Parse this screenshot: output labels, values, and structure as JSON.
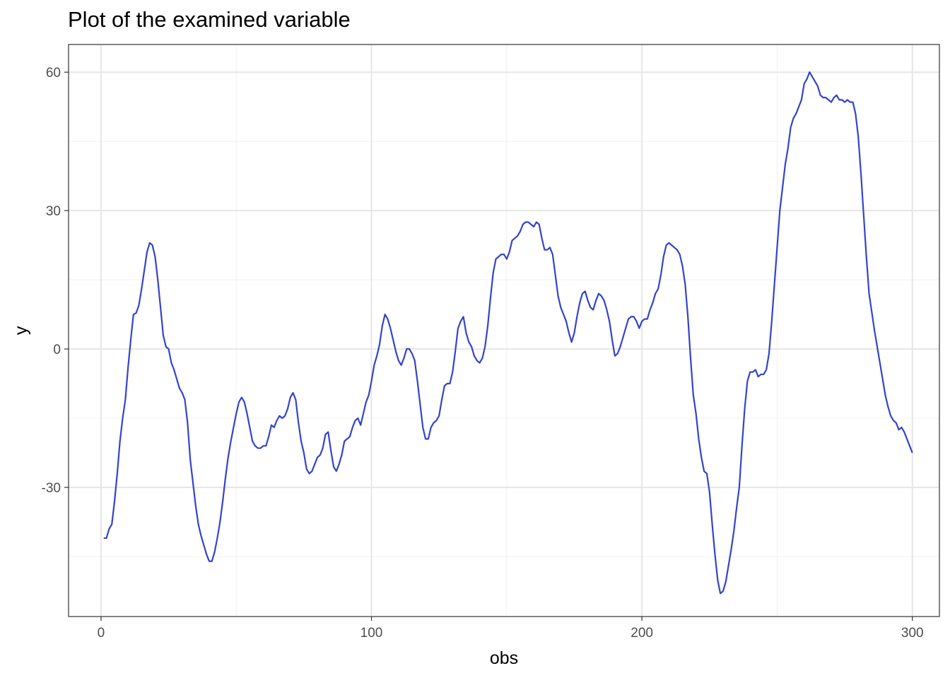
{
  "chart_data": {
    "type": "line",
    "title": "Plot of the examined variable",
    "xlabel": "obs",
    "ylabel": "y",
    "xlim": [
      -12,
      310
    ],
    "ylim": [
      -58,
      66
    ],
    "x_ticks": [
      0,
      100,
      200,
      300
    ],
    "y_ticks": [
      -30,
      0,
      30,
      60
    ],
    "grid": true,
    "line_color": "#3344cc",
    "series": [
      {
        "points": [
          [
            1,
            -41
          ],
          [
            2,
            -41
          ],
          [
            3,
            -39
          ],
          [
            4,
            -38
          ],
          [
            5,
            -33
          ],
          [
            6,
            -27
          ],
          [
            7,
            -20
          ],
          [
            8,
            -15
          ],
          [
            9,
            -11
          ],
          [
            10,
            -4
          ],
          [
            11,
            2
          ],
          [
            12,
            7.5
          ],
          [
            13,
            7.8
          ],
          [
            14,
            9.5
          ],
          [
            15,
            13
          ],
          [
            16,
            17
          ],
          [
            17,
            21
          ],
          [
            18,
            23
          ],
          [
            19,
            22.5
          ],
          [
            20,
            20
          ],
          [
            21,
            15
          ],
          [
            22,
            9
          ],
          [
            23,
            3
          ],
          [
            24,
            0.5
          ],
          [
            25,
            0
          ],
          [
            26,
            -3
          ],
          [
            27,
            -4.5
          ],
          [
            28,
            -6.5
          ],
          [
            29,
            -8.5
          ],
          [
            30,
            -9.5
          ],
          [
            31,
            -11
          ],
          [
            32,
            -16
          ],
          [
            33,
            -24
          ],
          [
            34,
            -29
          ],
          [
            35,
            -34
          ],
          [
            36,
            -38
          ],
          [
            37,
            -40.5
          ],
          [
            38,
            -42.5
          ],
          [
            39,
            -44.5
          ],
          [
            40,
            -46
          ],
          [
            41,
            -46
          ],
          [
            42,
            -44
          ],
          [
            43,
            -41
          ],
          [
            44,
            -37.5
          ],
          [
            45,
            -33
          ],
          [
            46,
            -28
          ],
          [
            47,
            -23.5
          ],
          [
            48,
            -20
          ],
          [
            49,
            -17
          ],
          [
            50,
            -14
          ],
          [
            51,
            -11.5
          ],
          [
            52,
            -10.5
          ],
          [
            53,
            -11.5
          ],
          [
            54,
            -14
          ],
          [
            55,
            -17
          ],
          [
            56,
            -20
          ],
          [
            57,
            -21
          ],
          [
            58,
            -21.5
          ],
          [
            59,
            -21.5
          ],
          [
            60,
            -21
          ],
          [
            61,
            -21
          ],
          [
            62,
            -19
          ],
          [
            63,
            -16.5
          ],
          [
            64,
            -17
          ],
          [
            65,
            -15.5
          ],
          [
            66,
            -14.5
          ],
          [
            67,
            -15
          ],
          [
            68,
            -14.5
          ],
          [
            69,
            -13
          ],
          [
            70,
            -10.5
          ],
          [
            71,
            -9.5
          ],
          [
            72,
            -11
          ],
          [
            73,
            -16
          ],
          [
            74,
            -20
          ],
          [
            75,
            -22.5
          ],
          [
            76,
            -26
          ],
          [
            77,
            -27
          ],
          [
            78,
            -26.5
          ],
          [
            79,
            -25
          ],
          [
            80,
            -23.5
          ],
          [
            81,
            -23
          ],
          [
            82,
            -21.5
          ],
          [
            83,
            -18.5
          ],
          [
            84,
            -18
          ],
          [
            85,
            -22
          ],
          [
            86,
            -25.5
          ],
          [
            87,
            -26.5
          ],
          [
            88,
            -25
          ],
          [
            89,
            -23
          ],
          [
            90,
            -20
          ],
          [
            91,
            -19.5
          ],
          [
            92,
            -19
          ],
          [
            93,
            -17
          ],
          [
            94,
            -15.5
          ],
          [
            95,
            -15
          ],
          [
            96,
            -16.5
          ],
          [
            97,
            -14
          ],
          [
            98,
            -11.5
          ],
          [
            99,
            -10
          ],
          [
            100,
            -7
          ],
          [
            101,
            -3.5
          ],
          [
            102,
            -1.5
          ],
          [
            103,
            1
          ],
          [
            104,
            5
          ],
          [
            105,
            7.5
          ],
          [
            106,
            6.5
          ],
          [
            107,
            4.5
          ],
          [
            108,
            2
          ],
          [
            109,
            -0.5
          ],
          [
            110,
            -2.5
          ],
          [
            111,
            -3.5
          ],
          [
            112,
            -2
          ],
          [
            113,
            0
          ],
          [
            114,
            0
          ],
          [
            115,
            -1
          ],
          [
            116,
            -2.5
          ],
          [
            117,
            -7
          ],
          [
            118,
            -12
          ],
          [
            119,
            -17
          ],
          [
            120,
            -19.5
          ],
          [
            121,
            -19.5
          ],
          [
            122,
            -17
          ],
          [
            123,
            -16
          ],
          [
            124,
            -15.5
          ],
          [
            125,
            -14.5
          ],
          [
            126,
            -11
          ],
          [
            127,
            -8
          ],
          [
            128,
            -7.5
          ],
          [
            129,
            -7.5
          ],
          [
            130,
            -5
          ],
          [
            131,
            -0.5
          ],
          [
            132,
            4.5
          ],
          [
            133,
            6
          ],
          [
            134,
            7
          ],
          [
            135,
            3.5
          ],
          [
            136,
            1.5
          ],
          [
            137,
            0.5
          ],
          [
            138,
            -1.5
          ],
          [
            139,
            -2.5
          ],
          [
            140,
            -3
          ],
          [
            141,
            -2
          ],
          [
            142,
            0.5
          ],
          [
            143,
            5
          ],
          [
            144,
            11
          ],
          [
            145,
            16.5
          ],
          [
            146,
            19.5
          ],
          [
            147,
            20
          ],
          [
            148,
            20.5
          ],
          [
            149,
            20.5
          ],
          [
            150,
            19.5
          ],
          [
            151,
            21
          ],
          [
            152,
            23.5
          ],
          [
            153,
            24
          ],
          [
            154,
            24.5
          ],
          [
            155,
            25.5
          ],
          [
            156,
            27
          ],
          [
            157,
            27.5
          ],
          [
            158,
            27.5
          ],
          [
            159,
            27
          ],
          [
            160,
            26.5
          ],
          [
            161,
            27.5
          ],
          [
            162,
            27
          ],
          [
            163,
            24
          ],
          [
            164,
            21.5
          ],
          [
            165,
            21.5
          ],
          [
            166,
            22
          ],
          [
            167,
            20.5
          ],
          [
            168,
            16
          ],
          [
            169,
            11.5
          ],
          [
            170,
            9
          ],
          [
            171,
            7.5
          ],
          [
            172,
            6
          ],
          [
            173,
            3.5
          ],
          [
            174,
            1.5
          ],
          [
            175,
            3.5
          ],
          [
            176,
            7
          ],
          [
            177,
            10
          ],
          [
            178,
            12
          ],
          [
            179,
            12.5
          ],
          [
            180,
            10.5
          ],
          [
            181,
            9
          ],
          [
            182,
            8.5
          ],
          [
            183,
            10.5
          ],
          [
            184,
            12
          ],
          [
            185,
            11.5
          ],
          [
            186,
            10.5
          ],
          [
            187,
            8.5
          ],
          [
            188,
            6
          ],
          [
            189,
            2
          ],
          [
            190,
            -1.5
          ],
          [
            191,
            -1
          ],
          [
            192,
            0.5
          ],
          [
            193,
            2.5
          ],
          [
            194,
            4.5
          ],
          [
            195,
            6.5
          ],
          [
            196,
            7
          ],
          [
            197,
            7
          ],
          [
            198,
            6
          ],
          [
            199,
            4.5
          ],
          [
            200,
            6
          ],
          [
            201,
            6.5
          ],
          [
            202,
            6.5
          ],
          [
            203,
            8.5
          ],
          [
            204,
            10
          ],
          [
            205,
            12
          ],
          [
            206,
            13
          ],
          [
            207,
            16
          ],
          [
            208,
            20
          ],
          [
            209,
            22.5
          ],
          [
            210,
            23
          ],
          [
            211,
            22.5
          ],
          [
            212,
            22
          ],
          [
            213,
            21.5
          ],
          [
            214,
            20.5
          ],
          [
            215,
            18
          ],
          [
            216,
            14
          ],
          [
            217,
            7
          ],
          [
            218,
            -2
          ],
          [
            219,
            -10
          ],
          [
            220,
            -14
          ],
          [
            221,
            -19.5
          ],
          [
            222,
            -23.5
          ],
          [
            223,
            -26.5
          ],
          [
            224,
            -27
          ],
          [
            225,
            -31
          ],
          [
            226,
            -38
          ],
          [
            227,
            -44.5
          ],
          [
            228,
            -50
          ],
          [
            229,
            -53
          ],
          [
            230,
            -52.5
          ],
          [
            231,
            -50.5
          ],
          [
            232,
            -47
          ],
          [
            233,
            -43.5
          ],
          [
            234,
            -39.5
          ],
          [
            235,
            -34.5
          ],
          [
            236,
            -30
          ],
          [
            237,
            -21
          ],
          [
            238,
            -13
          ],
          [
            239,
            -7
          ],
          [
            240,
            -5
          ],
          [
            241,
            -5
          ],
          [
            242,
            -4.5
          ],
          [
            243,
            -6
          ],
          [
            244,
            -5.5
          ],
          [
            245,
            -5.5
          ],
          [
            246,
            -4.5
          ],
          [
            247,
            -1
          ],
          [
            248,
            6
          ],
          [
            249,
            14
          ],
          [
            250,
            22
          ],
          [
            251,
            30
          ],
          [
            252,
            35
          ],
          [
            253,
            40
          ],
          [
            254,
            43.5
          ],
          [
            255,
            48
          ],
          [
            256,
            50
          ],
          [
            257,
            51
          ],
          [
            258,
            52.5
          ],
          [
            259,
            54
          ],
          [
            260,
            57.5
          ],
          [
            261,
            58.5
          ],
          [
            262,
            60
          ],
          [
            263,
            59
          ],
          [
            264,
            58
          ],
          [
            265,
            57
          ],
          [
            266,
            55
          ],
          [
            267,
            54.5
          ],
          [
            268,
            54.5
          ],
          [
            269,
            54
          ],
          [
            270,
            53.5
          ],
          [
            271,
            54.5
          ],
          [
            272,
            55
          ],
          [
            273,
            54
          ],
          [
            274,
            54
          ],
          [
            275,
            53.5
          ],
          [
            276,
            54
          ],
          [
            277,
            53.5
          ],
          [
            278,
            53.5
          ],
          [
            279,
            51
          ],
          [
            280,
            46
          ],
          [
            281,
            38
          ],
          [
            282,
            29
          ],
          [
            283,
            20
          ],
          [
            284,
            12
          ],
          [
            285,
            8
          ],
          [
            286,
            4
          ],
          [
            287,
            0.5
          ],
          [
            288,
            -3
          ],
          [
            289,
            -6.5
          ],
          [
            290,
            -10
          ],
          [
            291,
            -12.5
          ],
          [
            292,
            -14.5
          ],
          [
            293,
            -15.5
          ],
          [
            294,
            -16
          ],
          [
            295,
            -17.5
          ],
          [
            296,
            -17
          ],
          [
            297,
            -18
          ],
          [
            298,
            -19.5
          ],
          [
            299,
            -21
          ],
          [
            300,
            -22.5
          ]
        ]
      }
    ]
  }
}
